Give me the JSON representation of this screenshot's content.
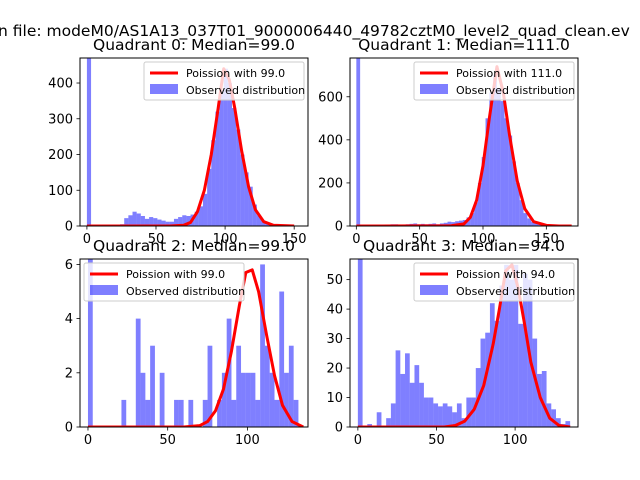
{
  "figure": {
    "suptitle": "n file: modeM0/AS1A13_037T01_9000006440_49782cztM0_level2_quad_clean.ev",
    "colors": {
      "hist": "#0000ff",
      "model": "#ff0000",
      "axis": "#000000",
      "background": "#ffffff"
    }
  },
  "chart_data": [
    {
      "type": "bar",
      "title": "Quadrant 0: Median=99.0",
      "xlim": [
        -5,
        160
      ],
      "ylim": [
        0,
        470
      ],
      "xticks": [
        0,
        50,
        100,
        150
      ],
      "yticks": [
        0,
        100,
        200,
        300,
        400
      ],
      "bin_width": 3.0,
      "legend": {
        "position": "top-right",
        "line_label": "Poission with 99.0",
        "hist_label": "Observed distribution"
      },
      "histogram": {
        "x": [
          0,
          3,
          6,
          9,
          12,
          15,
          18,
          21,
          24,
          27,
          30,
          33,
          36,
          39,
          42,
          45,
          48,
          51,
          54,
          57,
          60,
          63,
          66,
          69,
          72,
          75,
          78,
          81,
          84,
          87,
          90,
          93,
          96,
          99,
          102,
          105,
          108,
          111,
          114,
          117,
          120,
          123,
          126,
          129,
          132,
          135,
          138,
          141,
          144,
          147
        ],
        "counts": [
          470,
          0,
          0,
          0,
          0,
          0,
          0,
          0,
          5,
          22,
          30,
          40,
          35,
          28,
          20,
          25,
          22,
          18,
          15,
          12,
          12,
          20,
          25,
          30,
          28,
          32,
          40,
          55,
          90,
          160,
          240,
          320,
          380,
          440,
          400,
          330,
          270,
          200,
          150,
          110,
          60,
          30,
          15,
          8,
          5,
          3,
          2,
          2,
          1,
          1
        ]
      },
      "model": {
        "x": [
          0,
          60,
          70,
          75,
          80,
          85,
          90,
          95,
          99,
          103,
          107,
          112,
          117,
          122,
          128,
          135,
          150
        ],
        "y": [
          0,
          0,
          2,
          10,
          40,
          100,
          200,
          330,
          440,
          410,
          330,
          210,
          110,
          45,
          12,
          2,
          0
        ]
      }
    },
    {
      "type": "bar",
      "title": "Quadrant 1: Median=111.0",
      "xlim": [
        -5,
        175
      ],
      "ylim": [
        0,
        780
      ],
      "xticks": [
        0,
        50,
        100,
        150
      ],
      "yticks": [
        0,
        200,
        400,
        600
      ],
      "bin_width": 3.0,
      "legend": {
        "position": "top-right",
        "line_label": "Poission with 111.0",
        "hist_label": "Observed distribution"
      },
      "histogram": {
        "x": [
          0,
          3,
          6,
          9,
          12,
          15,
          18,
          21,
          24,
          27,
          30,
          33,
          36,
          39,
          42,
          45,
          48,
          51,
          54,
          57,
          60,
          63,
          66,
          69,
          72,
          75,
          78,
          81,
          84,
          87,
          90,
          93,
          96,
          99,
          102,
          105,
          108,
          111,
          114,
          117,
          120,
          123,
          126,
          129,
          132,
          135,
          138,
          141,
          144,
          147,
          150,
          153,
          156,
          159,
          162,
          165
        ],
        "counts": [
          780,
          0,
          0,
          0,
          0,
          0,
          0,
          0,
          5,
          8,
          8,
          6,
          5,
          8,
          10,
          12,
          8,
          10,
          8,
          10,
          12,
          8,
          12,
          15,
          20,
          18,
          22,
          25,
          28,
          40,
          60,
          110,
          200,
          320,
          500,
          620,
          700,
          640,
          580,
          500,
          420,
          300,
          200,
          120,
          60,
          35,
          20,
          15,
          10,
          8,
          6,
          5,
          4,
          3,
          2,
          2
        ]
      },
      "model": {
        "x": [
          0,
          75,
          85,
          90,
          95,
          100,
          105,
          111,
          116,
          121,
          127,
          133,
          140,
          150,
          160,
          170
        ],
        "y": [
          0,
          1,
          10,
          40,
          120,
          280,
          500,
          740,
          620,
          420,
          210,
          80,
          20,
          3,
          0,
          0
        ]
      }
    },
    {
      "type": "bar",
      "title": "Quadrant 2: Median=99.0",
      "xlim": [
        -5,
        138
      ],
      "ylim": [
        0,
        6.2
      ],
      "xticks": [
        0,
        50,
        100
      ],
      "yticks": [
        0,
        2,
        4,
        6
      ],
      "bin_width": 3.0,
      "legend": {
        "position": "top-left",
        "line_label": "Poission with 99.0",
        "hist_label": "Observed distribution"
      },
      "histogram": {
        "x": [
          0,
          3,
          6,
          9,
          12,
          15,
          18,
          21,
          24,
          27,
          30,
          33,
          36,
          39,
          42,
          45,
          48,
          51,
          54,
          57,
          60,
          63,
          66,
          69,
          72,
          75,
          78,
          81,
          84,
          87,
          90,
          93,
          96,
          99,
          102,
          105,
          108,
          111,
          114,
          117,
          120,
          123,
          126,
          129
        ],
        "counts": [
          6.2,
          0,
          0,
          0,
          0,
          0,
          0,
          1,
          0,
          0,
          4,
          2,
          1,
          3,
          0,
          2,
          0,
          0,
          1,
          1,
          0,
          1,
          0,
          0,
          1,
          3,
          0,
          1,
          2,
          4,
          1,
          3,
          2,
          2,
          2,
          1,
          6,
          3,
          2,
          1,
          5,
          2,
          3,
          1
        ]
      },
      "model": {
        "x": [
          0,
          60,
          70,
          75,
          80,
          85,
          90,
          95,
          99,
          103,
          107,
          112,
          117,
          122,
          128,
          135
        ],
        "y": [
          0,
          0,
          0.05,
          0.2,
          0.6,
          1.4,
          2.8,
          4.5,
          5.7,
          5.8,
          5.0,
          3.4,
          1.9,
          0.8,
          0.2,
          0
        ]
      }
    },
    {
      "type": "bar",
      "title": "Quadrant 3: Median=94.0",
      "xlim": [
        -5,
        140
      ],
      "ylim": [
        0,
        57
      ],
      "xticks": [
        0,
        50,
        100
      ],
      "yticks": [
        0,
        10,
        20,
        30,
        40,
        50
      ],
      "bin_width": 3.0,
      "legend": {
        "position": "top-right",
        "line_label": "Poission with 94.0",
        "hist_label": "Observed distribution"
      },
      "histogram": {
        "x": [
          0,
          3,
          6,
          9,
          12,
          15,
          18,
          21,
          24,
          27,
          30,
          33,
          36,
          39,
          42,
          45,
          48,
          51,
          54,
          57,
          60,
          63,
          66,
          69,
          72,
          75,
          78,
          81,
          84,
          87,
          90,
          93,
          96,
          99,
          102,
          105,
          108,
          111,
          114,
          117,
          120,
          123,
          126,
          129,
          132
        ],
        "counts": [
          57,
          0,
          1,
          0,
          5,
          0,
          3,
          8,
          26,
          18,
          25,
          15,
          21,
          15,
          10,
          10,
          8,
          7,
          8,
          7,
          5,
          8,
          3,
          10,
          10,
          20,
          30,
          32,
          42,
          36,
          48,
          55,
          50,
          55,
          35,
          52,
          50,
          30,
          18,
          19,
          8,
          6,
          3,
          1,
          2
        ]
      },
      "model": {
        "x": [
          0,
          55,
          62,
          68,
          74,
          80,
          86,
          90,
          94,
          98,
          102,
          106,
          110,
          116,
          122,
          128,
          135
        ],
        "y": [
          0,
          0,
          0.5,
          2,
          6,
          14,
          28,
          40,
          53,
          55,
          47,
          35,
          22,
          10,
          3,
          0.5,
          0
        ]
      }
    }
  ]
}
